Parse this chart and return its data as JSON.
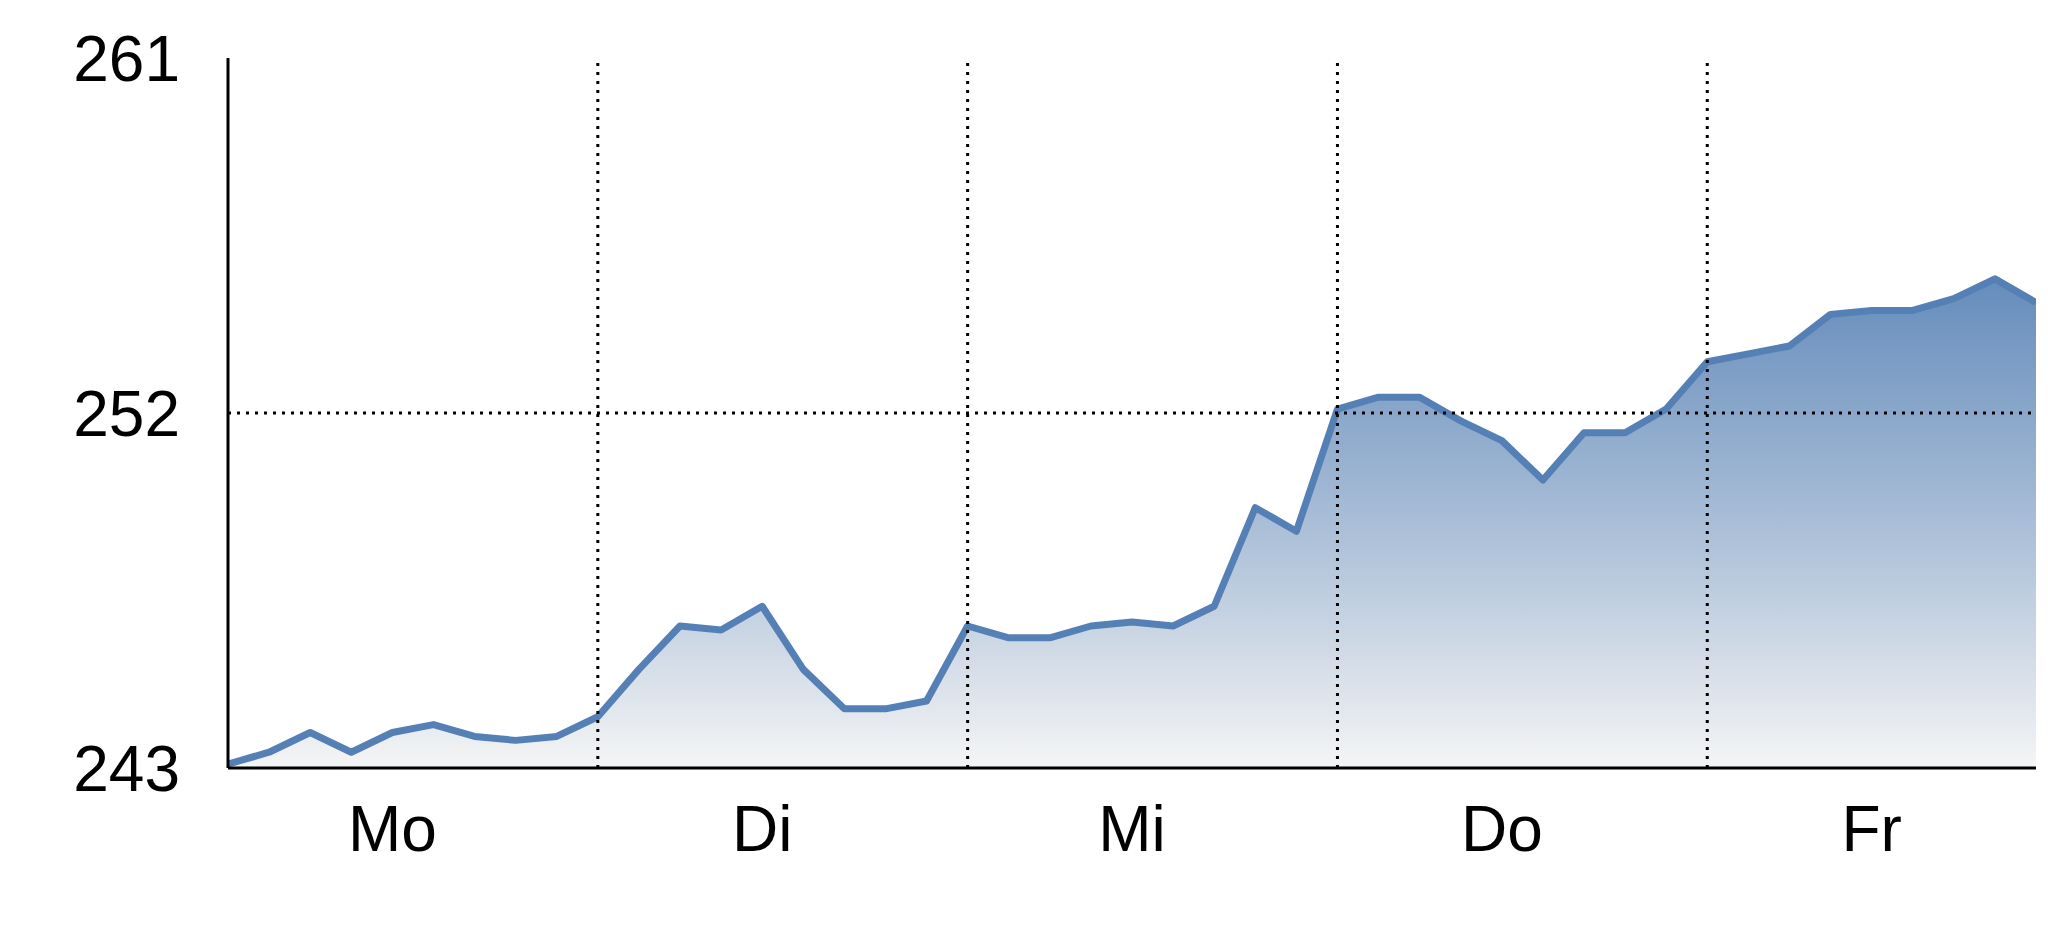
{
  "chart_data": {
    "type": "area",
    "categories": [
      null,
      null,
      null,
      null,
      "Mo",
      null,
      null,
      null,
      null,
      null,
      null,
      null,
      null,
      "Di",
      null,
      null,
      null,
      null,
      null,
      null,
      null,
      null,
      "Mi",
      null,
      null,
      null,
      null,
      null,
      null,
      null,
      null,
      "Do",
      null,
      null,
      null,
      null,
      null,
      null,
      null,
      null,
      "Fr",
      null,
      null,
      null,
      null
    ],
    "series": [
      {
        "color": "#5580b5",
        "values": [
          243.1,
          243.4,
          243.9,
          243.4,
          243.9,
          244.1,
          243.8,
          243.7,
          243.8,
          244.3,
          245.5,
          246.6,
          246.5,
          247.1,
          245.5,
          244.5,
          244.5,
          244.7,
          246.6,
          246.3,
          246.3,
          246.6,
          246.7,
          246.6,
          247.1,
          249.6,
          249.0,
          252.1,
          252.4,
          252.4,
          251.8,
          251.3,
          250.3,
          251.5,
          251.5,
          252.1,
          253.3,
          253.5,
          253.7,
          254.5,
          254.6,
          254.6,
          254.9,
          255.4,
          254.8
        ]
      }
    ],
    "ylim": [
      243,
      261
    ],
    "yticks": [
      243,
      252,
      261
    ],
    "ref_lines": [
      {
        "axis": "y",
        "value": 252,
        "color": "#000000",
        "line_style": "dotted"
      }
    ],
    "grid": "x",
    "legend": false
  }
}
